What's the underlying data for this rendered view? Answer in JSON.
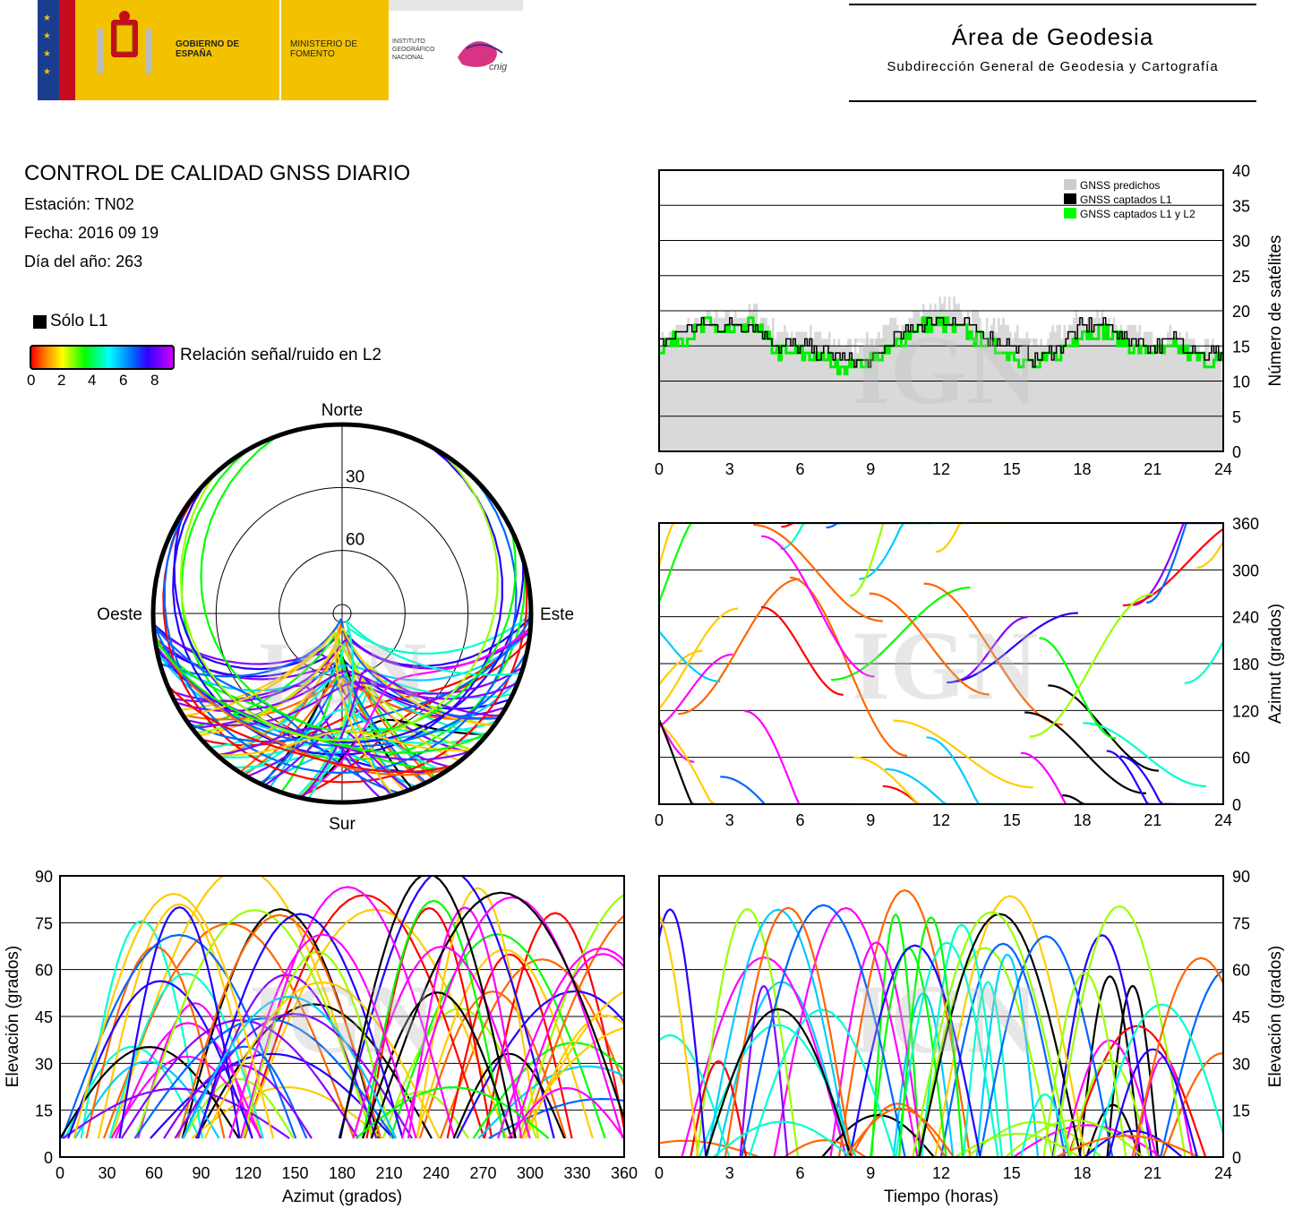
{
  "header": {
    "logos": {
      "gobierno": "GOBIERNO DE ESPAÑA",
      "ministerio": "MINISTERIO DE FOMENTO",
      "instituto": "INSTITUTO GEOGRÁFICO NACIONAL",
      "cnig": "cnig"
    },
    "area_title": "Área de Geodesia",
    "area_subtitle": "Subdirección General de Geodesia y Cartografía"
  },
  "report": {
    "title": "CONTROL DE CALIDAD GNSS DIARIO",
    "station": "Estación: TN02",
    "date": "Fecha: 2016 09 19",
    "doy": "Día del año: 263"
  },
  "legend": {
    "l1_only": "Sólo L1",
    "snr_label": "Relación señal/ruido en L2",
    "snr_ticks": [
      "0",
      "2",
      "4",
      "6",
      "8"
    ]
  },
  "watermark": "IGN",
  "colors": {
    "l1_only": "#000000",
    "predicted": "#d9d9d9",
    "l1l2": "#00ee00",
    "grid": "#000000"
  },
  "chart_data": [
    {
      "type": "line",
      "name": "satellite-count",
      "legend": [
        "GNSS predichos",
        "GNSS captados L1",
        "GNSS captados L1 y L2"
      ],
      "x_ticks": [
        "0",
        "3",
        "6",
        "9",
        "12",
        "15",
        "18",
        "21",
        "24"
      ],
      "y_ticks": [
        "0",
        "5",
        "10",
        "15",
        "20",
        "25",
        "30",
        "35",
        "40"
      ],
      "xlim": [
        0,
        24
      ],
      "ylim": [
        0,
        40
      ],
      "ylabel": "Número de satélites",
      "x": [
        0,
        1,
        2,
        3,
        4,
        5,
        6,
        7,
        8,
        9,
        10,
        11,
        12,
        13,
        14,
        15,
        16,
        17,
        18,
        19,
        20,
        21,
        22,
        23,
        24
      ],
      "series": [
        {
          "name": "GNSS predichos",
          "values": [
            16,
            18,
            19,
            19,
            20,
            17,
            17,
            16,
            15,
            16,
            18,
            20,
            21,
            20,
            18,
            17,
            15,
            17,
            19,
            19,
            17,
            16,
            17,
            15,
            15
          ]
        },
        {
          "name": "GNSS captados L1",
          "values": [
            15,
            17,
            18,
            18,
            18,
            15,
            15,
            14,
            13,
            13,
            16,
            18,
            19,
            18,
            16,
            15,
            13,
            15,
            18,
            18,
            16,
            15,
            16,
            14,
            14
          ]
        },
        {
          "name": "GNSS captados L1 y L2",
          "values": [
            15,
            16,
            18,
            17,
            18,
            14,
            14,
            13,
            12,
            13,
            15,
            18,
            18,
            17,
            15,
            14,
            12,
            14,
            17,
            17,
            15,
            14,
            15,
            13,
            13
          ]
        }
      ]
    },
    {
      "type": "scatter",
      "name": "azimuth-vs-time",
      "x_ticks": [
        "0",
        "3",
        "6",
        "9",
        "12",
        "15",
        "18",
        "21",
        "24"
      ],
      "y_ticks": [
        "0",
        "60",
        "120",
        "180",
        "240",
        "300",
        "360"
      ],
      "xlim": [
        0,
        24
      ],
      "ylim": [
        0,
        360
      ],
      "ylabel": "Azimut (grados)"
    },
    {
      "type": "scatter",
      "name": "skyplot",
      "labels": {
        "north": "Norte",
        "south": "Sur",
        "east": "Este",
        "west": "Oeste"
      },
      "rings": [
        "30",
        "60"
      ]
    },
    {
      "type": "scatter",
      "name": "elevation-vs-azimuth",
      "x_ticks": [
        "0",
        "30",
        "60",
        "90",
        "120",
        "150",
        "180",
        "210",
        "240",
        "270",
        "300",
        "330",
        "360"
      ],
      "y_ticks": [
        "0",
        "15",
        "30",
        "45",
        "60",
        "75",
        "90"
      ],
      "xlim": [
        0,
        360
      ],
      "ylim": [
        0,
        90
      ],
      "xlabel": "Azimut (grados)",
      "ylabel": "Elevación (grados)"
    },
    {
      "type": "scatter",
      "name": "elevation-vs-time",
      "x_ticks": [
        "0",
        "3",
        "6",
        "9",
        "12",
        "15",
        "18",
        "21",
        "24"
      ],
      "y_ticks": [
        "0",
        "15",
        "30",
        "45",
        "60",
        "75",
        "90"
      ],
      "xlim": [
        0,
        24
      ],
      "ylim": [
        0,
        90
      ],
      "xlabel": "Tiempo (horas)",
      "ylabel": "Elevación (grados)"
    }
  ]
}
